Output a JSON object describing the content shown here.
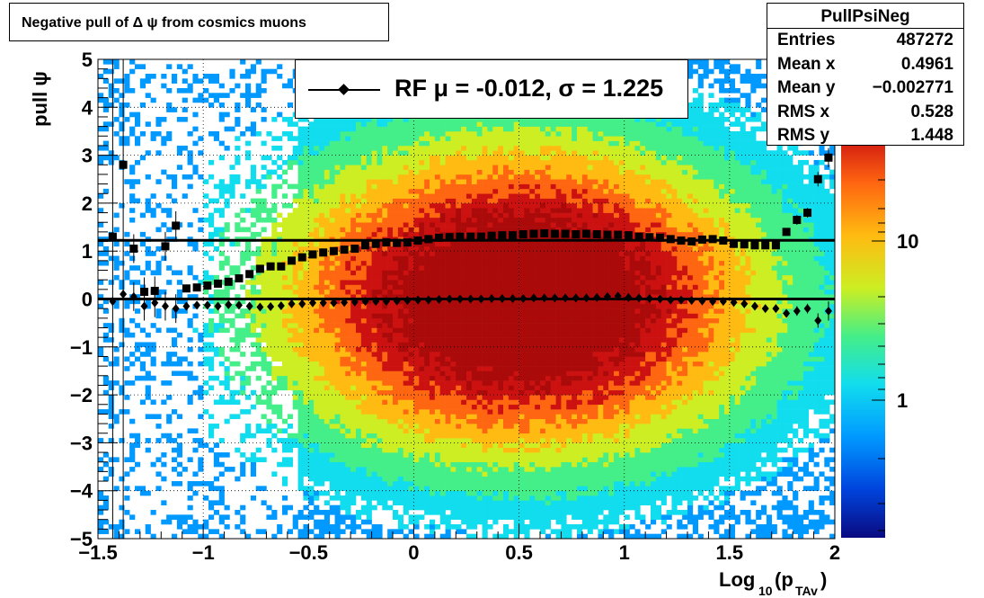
{
  "title": "Negative pull of Δ ψ from cosmics muons",
  "stats": {
    "name": "PullPsiNeg",
    "rows": [
      {
        "label": "Entries",
        "value": "487272"
      },
      {
        "label": "Mean x",
        "value": "0.4961"
      },
      {
        "label": "Mean y",
        "value": "−0.002771"
      },
      {
        "label": "RMS x",
        "value": "0.528"
      },
      {
        "label": "RMS y",
        "value": "1.448"
      }
    ]
  },
  "legend": {
    "text": "RF μ = -0.012, σ =   1.225"
  },
  "chart_data": {
    "type": "heatmap",
    "xlabel": "Log10(pTAv)",
    "ylabel": "pull ψ",
    "xlim": [
      -1.5,
      2
    ],
    "ylim": [
      -5,
      5
    ],
    "log_z": true,
    "x_ticks": [
      "−1.5",
      "−1",
      "−0.5",
      "0",
      "0.5",
      "1",
      "1.5",
      "2"
    ],
    "y_ticks": [
      "−5",
      "−4",
      "−3",
      "−2",
      "−1",
      "0",
      "1",
      "2",
      "3",
      "4",
      "5"
    ],
    "z_ticks": [
      "1",
      "10"
    ],
    "grid": true,
    "density_peak": {
      "x": 0.5,
      "y": 0.0
    },
    "horizontal_lines": [
      0,
      1.225
    ],
    "series": [
      {
        "marker": "square",
        "x": [
          -1.43,
          -1.38,
          -1.33,
          -1.28,
          -1.23,
          -1.18,
          -1.13,
          -1.08,
          -1.03,
          -0.98,
          -0.93,
          -0.88,
          -0.83,
          -0.78,
          -0.73,
          -0.68,
          -0.63,
          -0.58,
          -0.53,
          -0.48,
          -0.43,
          -0.38,
          -0.33,
          -0.28,
          -0.23,
          -0.18,
          -0.13,
          -0.08,
          -0.03,
          0.02,
          0.07,
          0.12,
          0.17,
          0.22,
          0.27,
          0.32,
          0.37,
          0.42,
          0.47,
          0.52,
          0.57,
          0.62,
          0.67,
          0.72,
          0.77,
          0.82,
          0.87,
          0.92,
          0.97,
          1.02,
          1.07,
          1.12,
          1.17,
          1.22,
          1.27,
          1.32,
          1.37,
          1.42,
          1.47,
          1.52,
          1.57,
          1.62,
          1.67,
          1.72,
          1.77,
          1.82,
          1.87,
          1.92,
          1.97
        ],
        "y": [
          1.3,
          2.8,
          1.05,
          0.15,
          0.17,
          1.1,
          1.53,
          0.22,
          0.24,
          0.28,
          0.32,
          0.36,
          0.43,
          0.52,
          0.63,
          0.68,
          0.68,
          0.8,
          0.87,
          0.93,
          0.97,
          1.0,
          1.03,
          1.05,
          1.12,
          1.15,
          1.18,
          1.17,
          1.18,
          1.22,
          1.25,
          1.28,
          1.29,
          1.3,
          1.3,
          1.3,
          1.32,
          1.33,
          1.33,
          1.35,
          1.36,
          1.37,
          1.36,
          1.36,
          1.35,
          1.36,
          1.35,
          1.34,
          1.34,
          1.33,
          1.3,
          1.29,
          1.28,
          1.25,
          1.22,
          1.2,
          1.24,
          1.25,
          1.22,
          1.15,
          1.14,
          1.12,
          1.12,
          1.12,
          1.4,
          1.65,
          1.8,
          2.5,
          2.95
        ],
        "yerr": [
          0.1,
          0.1,
          0.3,
          0.3,
          0.3,
          0.3,
          0.3,
          0.05,
          0.05,
          0.05,
          0.05,
          0.05,
          0.05,
          0.05,
          0.05,
          0.05,
          0.05,
          0.05,
          0.05,
          0.05,
          0.05,
          0.05,
          0.05,
          0.05,
          0.05,
          0.05,
          0.05,
          0.05,
          0.05,
          0.05,
          0.05,
          0.05,
          0.05,
          0.05,
          0.05,
          0.05,
          0.05,
          0.05,
          0.05,
          0.05,
          0.05,
          0.05,
          0.05,
          0.05,
          0.05,
          0.05,
          0.05,
          0.05,
          0.05,
          0.05,
          0.05,
          0.05,
          0.05,
          0.05,
          0.05,
          0.05,
          0.05,
          0.05,
          0.05,
          0.05,
          0.05,
          0.05,
          0.05,
          0.05,
          0.05,
          0.1,
          0.1,
          0.15,
          0.2
        ]
      },
      {
        "marker": "diamond",
        "x": [
          -1.43,
          -1.38,
          -1.33,
          -1.28,
          -1.23,
          -1.18,
          -1.13,
          -1.08,
          -1.03,
          -0.98,
          -0.93,
          -0.88,
          -0.83,
          -0.78,
          -0.73,
          -0.68,
          -0.63,
          -0.58,
          -0.53,
          -0.48,
          -0.43,
          -0.38,
          -0.33,
          -0.28,
          -0.23,
          -0.18,
          -0.13,
          -0.08,
          -0.03,
          0.02,
          0.07,
          0.12,
          0.17,
          0.22,
          0.27,
          0.32,
          0.37,
          0.42,
          0.47,
          0.52,
          0.57,
          0.62,
          0.67,
          0.72,
          0.77,
          0.82,
          0.87,
          0.92,
          0.97,
          1.02,
          1.07,
          1.12,
          1.17,
          1.22,
          1.27,
          1.32,
          1.37,
          1.42,
          1.47,
          1.52,
          1.57,
          1.62,
          1.67,
          1.72,
          1.77,
          1.82,
          1.87,
          1.92,
          1.97
        ],
        "y": [
          -0.05,
          0.1,
          0.05,
          -0.15,
          -0.08,
          -0.15,
          -0.2,
          -0.15,
          -0.13,
          -0.13,
          -0.15,
          -0.12,
          -0.13,
          -0.15,
          -0.17,
          -0.16,
          -0.14,
          -0.1,
          -0.1,
          -0.08,
          -0.08,
          -0.08,
          -0.07,
          -0.06,
          -0.05,
          -0.05,
          -0.05,
          -0.04,
          -0.03,
          -0.02,
          -0.02,
          -0.01,
          0.0,
          0.0,
          0.0,
          0.0,
          0.01,
          0.01,
          0.01,
          0.01,
          0.02,
          0.02,
          0.02,
          0.02,
          0.02,
          0.02,
          0.03,
          0.05,
          0.06,
          0.03,
          0.02,
          0.01,
          0.0,
          -0.02,
          -0.02,
          -0.03,
          -0.04,
          -0.05,
          -0.05,
          -0.07,
          -0.1,
          -0.15,
          -0.2,
          -0.2,
          -0.3,
          -0.25,
          -0.2,
          -0.45,
          -0.25
        ],
        "yerr": [
          0.1,
          0.1,
          0.3,
          0.3,
          0.3,
          0.3,
          0.3,
          0.05,
          0.05,
          0.05,
          0.05,
          0.05,
          0.05,
          0.05,
          0.05,
          0.05,
          0.05,
          0.05,
          0.05,
          0.05,
          0.05,
          0.05,
          0.05,
          0.05,
          0.05,
          0.05,
          0.05,
          0.05,
          0.05,
          0.05,
          0.05,
          0.05,
          0.05,
          0.05,
          0.05,
          0.05,
          0.05,
          0.05,
          0.05,
          0.05,
          0.05,
          0.05,
          0.05,
          0.05,
          0.05,
          0.05,
          0.05,
          0.05,
          0.05,
          0.05,
          0.05,
          0.05,
          0.05,
          0.05,
          0.05,
          0.05,
          0.05,
          0.05,
          0.05,
          0.05,
          0.05,
          0.05,
          0.05,
          0.05,
          0.05,
          0.1,
          0.1,
          0.15,
          0.2
        ]
      }
    ]
  }
}
